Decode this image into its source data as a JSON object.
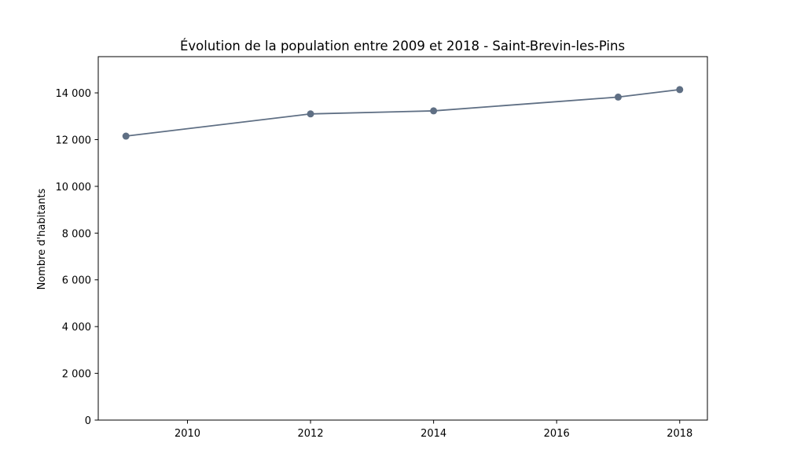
{
  "chart_data": {
    "type": "line",
    "title": "Évolution de la population entre 2009 et 2018 - Saint-Brevin-les-Pins",
    "xlabel": "",
    "ylabel": "Nombre d'habitants",
    "x": [
      2009,
      2012,
      2014,
      2017,
      2018
    ],
    "series": [
      {
        "values": [
          12150,
          13100,
          13230,
          13820,
          14140
        ],
        "color": "#5f6f84",
        "marker": "circle"
      }
    ],
    "xlim": [
      2008.55,
      2018.45
    ],
    "ylim": [
      0,
      15550
    ],
    "xticks": [
      2010,
      2012,
      2014,
      2016,
      2018
    ],
    "xtick_labels": [
      "2010",
      "2012",
      "2014",
      "2016",
      "2018"
    ],
    "yticks": [
      0,
      2000,
      4000,
      6000,
      8000,
      10000,
      12000,
      14000
    ],
    "ytick_labels": [
      "0",
      "2 000",
      "4 000",
      "6 000",
      "8 000",
      "10 000",
      "12 000",
      "14 000"
    ],
    "grid": false,
    "legend": "none"
  }
}
